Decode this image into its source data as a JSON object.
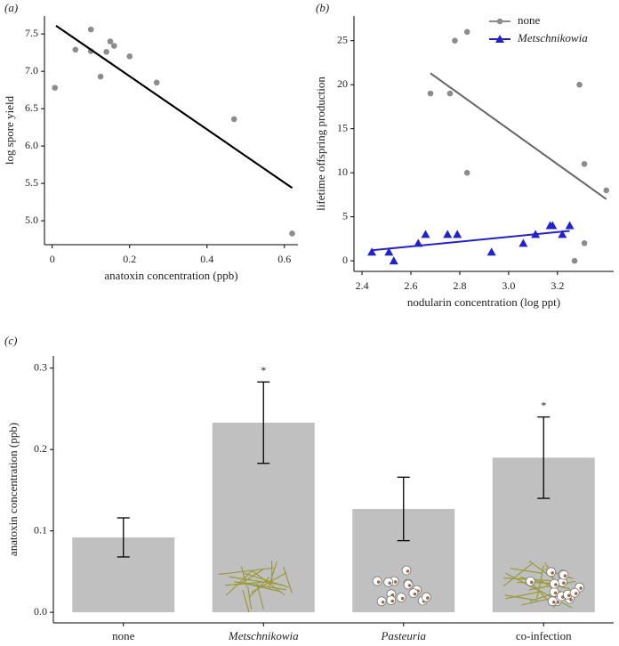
{
  "chart_data": [
    {
      "type": "scatter",
      "panel_label": "(a)",
      "x_label": "anatoxin concentration (ppb)",
      "y_label": "log spore yield",
      "x": [
        0.007,
        0.06,
        0.1,
        0.1,
        0.125,
        0.14,
        0.15,
        0.16,
        0.2,
        0.27,
        0.47,
        0.62
      ],
      "values": [
        6.78,
        7.29,
        7.56,
        7.27,
        6.93,
        7.26,
        7.4,
        7.34,
        7.2,
        6.85,
        6.36,
        4.83
      ],
      "color": "#8c8c8c",
      "fit": {
        "x": [
          0.01,
          0.62
        ],
        "y": [
          7.61,
          5.44
        ],
        "color": "#000000"
      },
      "xlim": [
        -0.02,
        0.635
      ],
      "ylim": [
        4.68,
        7.74
      ],
      "xticks": [
        0,
        0.2,
        0.4,
        0.6
      ],
      "yticks": [
        {
          "value": 5,
          "label": "5.0"
        },
        5.5,
        {
          "value": 6,
          "label": "6.0"
        },
        6.5,
        {
          "value": 7,
          "label": "7.0"
        },
        7.5
      ]
    },
    {
      "type": "scatter",
      "panel_label": "(b)",
      "x_label": "nodularin concentration (log ppt)",
      "y_label": "lifetime offspring production",
      "series": [
        {
          "name": "none",
          "color": "#8c8c8c",
          "marker": "circle",
          "italic": false,
          "x": [
            2.68,
            2.76,
            2.78,
            2.83,
            2.83,
            3.29,
            3.31,
            3.4,
            3.31,
            3.27
          ],
          "values": [
            19,
            19,
            25,
            26,
            10,
            20,
            11,
            8,
            2,
            0
          ],
          "fit": {
            "x": [
              2.68,
              3.4
            ],
            "y": [
              21.3,
              7.0
            ],
            "color": "#666666"
          }
        },
        {
          "name": "Metschnikowia",
          "color": "#2222cc",
          "marker": "triangle",
          "italic": true,
          "x": [
            2.44,
            2.51,
            2.53,
            2.63,
            2.66,
            2.75,
            2.79,
            2.93,
            3.06,
            3.11,
            3.17,
            3.18,
            3.22,
            3.25
          ],
          "values": [
            1,
            1,
            0,
            2,
            3,
            3,
            3,
            1,
            2,
            3,
            4,
            4,
            3,
            4
          ],
          "fit": {
            "x": [
              2.44,
              3.25
            ],
            "y": [
              1.2,
              3.4
            ],
            "color": "#2222cc"
          }
        }
      ],
      "legend": "upper right",
      "xlim": [
        2.367,
        3.43
      ],
      "ylim": [
        -1.2,
        27.8
      ],
      "xticks": [
        2.4,
        2.6,
        2.8,
        {
          "value": 3,
          "label": "3.0"
        },
        3.2
      ],
      "yticks": [
        0,
        5,
        10,
        15,
        20,
        25
      ]
    },
    {
      "type": "bar",
      "panel_label": "(c)",
      "y_label": "anatoxin concentration (ppb)",
      "categories": [
        "none",
        "Metschnikowia",
        "Pasteuria",
        "co-infection"
      ],
      "italic": [
        false,
        true,
        true,
        false
      ],
      "values": [
        0.092,
        0.233,
        0.127,
        0.19
      ],
      "errors": [
        0.024,
        0.05,
        0.039,
        0.05
      ],
      "significance": [
        null,
        "*",
        null,
        "*"
      ],
      "color": "#c0c0c0",
      "ylim": [
        -0.013,
        0.315
      ],
      "yticks": [
        {
          "value": 0,
          "label": "0.0"
        },
        0.1,
        0.2,
        0.3
      ]
    }
  ]
}
